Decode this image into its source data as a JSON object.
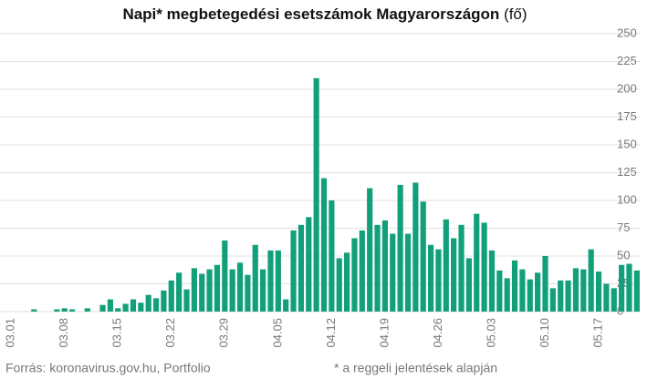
{
  "chart_data": {
    "type": "bar",
    "title": "Napi* megbetegedési esetszámok Magyarországon",
    "title_unit": "(fő)",
    "source": "Forrás: koronavirus.gov.hu, Portfolio",
    "note": "* a reggeli jelentések alapján",
    "categories": [
      "03.01",
      null,
      null,
      null,
      null,
      null,
      null,
      "03.08",
      null,
      null,
      null,
      null,
      null,
      null,
      "03.15",
      null,
      null,
      null,
      null,
      null,
      null,
      "03.22",
      null,
      null,
      null,
      null,
      null,
      null,
      "03.29",
      null,
      null,
      null,
      null,
      null,
      null,
      "04.05",
      null,
      null,
      null,
      null,
      null,
      null,
      "04.12",
      null,
      null,
      null,
      null,
      null,
      null,
      "04.19",
      null,
      null,
      null,
      null,
      null,
      null,
      "04.26",
      null,
      null,
      null,
      null,
      null,
      null,
      "05.03",
      null,
      null,
      null,
      null,
      null,
      null,
      "05.10",
      null,
      null,
      null,
      null,
      null,
      null,
      "05.17",
      null,
      null,
      null,
      null,
      null
    ],
    "values": [
      0,
      0,
      0,
      2,
      0,
      0,
      2,
      3,
      2,
      0,
      3,
      0,
      6,
      11,
      3,
      7,
      11,
      8,
      15,
      12,
      19,
      28,
      35,
      20,
      39,
      34,
      38,
      42,
      64,
      38,
      44,
      33,
      60,
      38,
      55,
      55,
      11,
      73,
      78,
      85,
      210,
      120,
      100,
      48,
      53,
      66,
      73,
      111,
      78,
      82,
      70,
      114,
      70,
      116,
      99,
      60,
      56,
      83,
      66,
      78,
      48,
      88,
      80,
      55,
      37,
      30,
      46,
      38,
      29,
      35,
      50,
      21,
      28,
      28,
      39,
      38,
      56,
      36,
      25,
      21,
      42,
      43,
      37
    ],
    "color": "#12a07b",
    "ylim": [
      0,
      250
    ],
    "yticks": [
      0,
      25,
      50,
      75,
      100,
      125,
      150,
      175,
      200,
      225,
      250
    ],
    "grid": true
  }
}
